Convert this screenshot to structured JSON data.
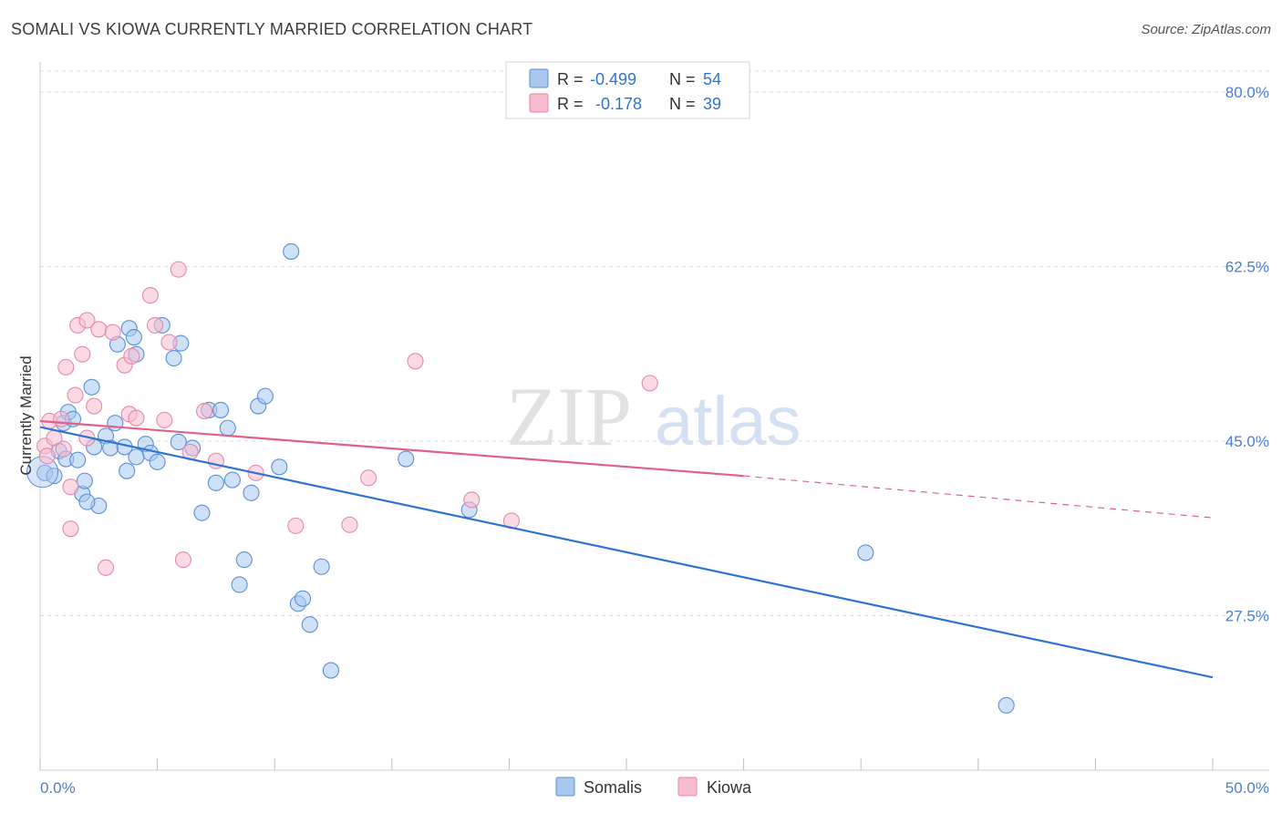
{
  "header": {
    "title": "SOMALI VS KIOWA CURRENTLY MARRIED CORRELATION CHART",
    "source": "Source: ZipAtlas.com"
  },
  "colors": {
    "somalis_fill": "#a8c8f0",
    "somalis_stroke": "#5b8fd6",
    "somalis_line": "#2f74d0",
    "kiowa_fill": "#f7bcd0",
    "kiowa_stroke": "#e48aa8",
    "kiowa_line": "#e0608a",
    "tick_text": "#4a7fd0",
    "grid": "#dcdcdc"
  },
  "legend": {
    "items": [
      {
        "r_label": "R =",
        "r_value": "-0.499",
        "n_label": "N =",
        "n_value": "54"
      },
      {
        "r_label": "R =",
        "r_value": "-0.178",
        "n_label": "N =",
        "n_value": "39"
      }
    ]
  },
  "bottom_legend": [
    "Somalis",
    "Kiowa"
  ],
  "watermark": {
    "part1": "ZIP",
    "part2": "atlas"
  },
  "chart_data": {
    "type": "scatter",
    "title": "SOMALI VS KIOWA CURRENTLY MARRIED CORRELATION CHART",
    "xlabel": "",
    "ylabel": "Currently Married",
    "xlim": [
      0,
      50
    ],
    "ylim": [
      12,
      83
    ],
    "x_tick_labels": [
      "0.0%",
      "50.0%"
    ],
    "y_ticks": [
      27.5,
      45.0,
      62.5,
      80.0
    ],
    "y_tick_labels": [
      "27.5%",
      "45.0%",
      "62.5%",
      "80.0%"
    ],
    "series": [
      {
        "name": "Somalis",
        "r": -0.499,
        "n": 54,
        "trend": {
          "x0": 0,
          "y0": 46.4,
          "x1": 50,
          "y1": 21.3
        },
        "points": [
          [
            0.2,
            41.8
          ],
          [
            0.6,
            41.5
          ],
          [
            0.8,
            44.0
          ],
          [
            1.0,
            46.8
          ],
          [
            1.1,
            43.2
          ],
          [
            1.2,
            47.9
          ],
          [
            1.4,
            47.2
          ],
          [
            1.6,
            43.1
          ],
          [
            1.8,
            39.7
          ],
          [
            1.9,
            41.0
          ],
          [
            2.2,
            50.4
          ],
          [
            2.3,
            44.4
          ],
          [
            2.5,
            38.5
          ],
          [
            2.8,
            45.5
          ],
          [
            3.0,
            44.3
          ],
          [
            3.2,
            46.8
          ],
          [
            3.3,
            54.7
          ],
          [
            3.6,
            44.4
          ],
          [
            3.8,
            56.3
          ],
          [
            4.0,
            55.4
          ],
          [
            4.1,
            53.7
          ],
          [
            4.5,
            44.7
          ],
          [
            4.7,
            43.8
          ],
          [
            5.2,
            56.6
          ],
          [
            5.7,
            53.3
          ],
          [
            5.9,
            44.9
          ],
          [
            6.0,
            54.8
          ],
          [
            6.5,
            44.3
          ],
          [
            6.9,
            37.8
          ],
          [
            7.2,
            48.1
          ],
          [
            7.5,
            40.8
          ],
          [
            7.7,
            48.1
          ],
          [
            8.0,
            46.3
          ],
          [
            8.2,
            41.1
          ],
          [
            8.5,
            30.6
          ],
          [
            8.7,
            33.1
          ],
          [
            9.0,
            39.8
          ],
          [
            9.3,
            48.5
          ],
          [
            9.6,
            49.5
          ],
          [
            10.2,
            42.4
          ],
          [
            10.7,
            64.0
          ],
          [
            11.0,
            28.7
          ],
          [
            11.2,
            29.2
          ],
          [
            12.0,
            32.4
          ],
          [
            12.4,
            22.0
          ],
          [
            15.6,
            43.2
          ],
          [
            18.3,
            38.1
          ],
          [
            35.2,
            33.8
          ],
          [
            41.2,
            18.5
          ],
          [
            4.1,
            43.4
          ],
          [
            5.0,
            42.9
          ],
          [
            3.7,
            42.0
          ],
          [
            2.0,
            38.9
          ],
          [
            11.5,
            26.6
          ]
        ]
      },
      {
        "name": "Kiowa",
        "r": -0.178,
        "n": 39,
        "trend": {
          "x0": 0,
          "y0": 47.0,
          "x1": 30,
          "y1": 41.5,
          "dash_x1": 50,
          "dash_y1": 37.3
        },
        "points": [
          [
            0.2,
            44.5
          ],
          [
            0.4,
            47.0
          ],
          [
            0.6,
            45.3
          ],
          [
            0.9,
            47.2
          ],
          [
            1.0,
            44.2
          ],
          [
            1.1,
            52.4
          ],
          [
            1.3,
            40.4
          ],
          [
            1.3,
            36.2
          ],
          [
            1.5,
            49.6
          ],
          [
            1.6,
            56.6
          ],
          [
            1.8,
            53.7
          ],
          [
            2.0,
            45.3
          ],
          [
            2.0,
            57.1
          ],
          [
            2.3,
            48.5
          ],
          [
            2.5,
            56.2
          ],
          [
            2.8,
            32.3
          ],
          [
            3.1,
            55.9
          ],
          [
            3.6,
            52.6
          ],
          [
            3.8,
            47.7
          ],
          [
            3.9,
            53.5
          ],
          [
            4.1,
            47.3
          ],
          [
            4.7,
            59.6
          ],
          [
            4.9,
            56.6
          ],
          [
            5.3,
            47.1
          ],
          [
            5.5,
            54.9
          ],
          [
            5.9,
            62.2
          ],
          [
            6.1,
            33.1
          ],
          [
            6.4,
            43.9
          ],
          [
            7.0,
            48.0
          ],
          [
            7.5,
            43.0
          ],
          [
            9.2,
            41.8
          ],
          [
            10.9,
            36.5
          ],
          [
            13.2,
            36.6
          ],
          [
            14.0,
            41.3
          ],
          [
            16.0,
            53.0
          ],
          [
            18.4,
            39.1
          ],
          [
            20.1,
            37.0
          ],
          [
            26.0,
            50.8
          ],
          [
            0.3,
            43.5
          ]
        ]
      }
    ]
  }
}
